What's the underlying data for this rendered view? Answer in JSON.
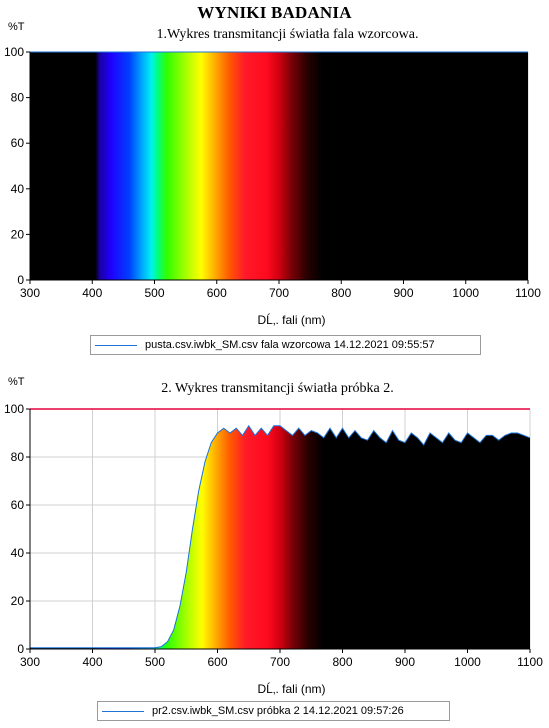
{
  "page_title": "WYNIKI BADANIA",
  "chart_data": [
    {
      "type": "area",
      "title": "1.Wykres transmitancji światła fala wzorcowa.",
      "ylabel": "%T",
      "xlabel": "DĹ‚. fali (nm)",
      "xlim": [
        300,
        1100
      ],
      "ylim": [
        0,
        100
      ],
      "xticks": [
        "300",
        "400",
        "500",
        "600",
        "700",
        "800",
        "900",
        "1000",
        "1100"
      ],
      "yticks": [
        "0",
        "20",
        "40",
        "60",
        "80",
        "100"
      ],
      "fill": "visible-spectrum",
      "grid": true,
      "legend": "pusta.csv.iwbk_SM.csv  fala wzorcowa  14.12.2021 09:55:57",
      "legend_color": "#1e73d8",
      "series": [
        {
          "x": [
            300,
            1100
          ],
          "y": [
            100,
            100
          ]
        }
      ]
    },
    {
      "type": "area",
      "title": "2. Wykres transmitancji światła próbka 2.",
      "ylabel": "%T",
      "xlabel": "DĹ‚. fali (nm)",
      "xlim": [
        300,
        1100
      ],
      "ylim": [
        0,
        100
      ],
      "xticks": [
        "300",
        "400",
        "500",
        "600",
        "700",
        "800",
        "900",
        "1000",
        "1100"
      ],
      "yticks": [
        "0",
        "20",
        "40",
        "60",
        "80",
        "100"
      ],
      "fill": "visible-spectrum",
      "grid": true,
      "reference_line": {
        "y": 100,
        "color": "#e8003c"
      },
      "legend": "pr2.csv.iwbk_SM.csv  próbka 2 14.12.2021 09:57:26",
      "legend_color": "#1e73d8",
      "series": [
        {
          "x": [
            300,
            500,
            510,
            520,
            530,
            540,
            550,
            560,
            570,
            580,
            590,
            600,
            610,
            620,
            630,
            640,
            650,
            660,
            670,
            680,
            690,
            700,
            710,
            720,
            730,
            740,
            750,
            760,
            770,
            780,
            790,
            800,
            810,
            820,
            830,
            840,
            850,
            860,
            870,
            880,
            890,
            900,
            910,
            920,
            930,
            940,
            950,
            960,
            970,
            980,
            990,
            1000,
            1010,
            1020,
            1030,
            1040,
            1050,
            1060,
            1070,
            1080,
            1090,
            1100
          ],
          "y": [
            0.5,
            0.5,
            1,
            3,
            8,
            18,
            32,
            50,
            66,
            78,
            86,
            90,
            92,
            90,
            92,
            89,
            93,
            89,
            92,
            89,
            93,
            93,
            91,
            89,
            92,
            89,
            91,
            90,
            88,
            92,
            88,
            92,
            88,
            91,
            88,
            87,
            91,
            88,
            86,
            91,
            87,
            86,
            90,
            88,
            85,
            90,
            88,
            86,
            90,
            87,
            86,
            90,
            88,
            86,
            89,
            89,
            87,
            89,
            90,
            90,
            89,
            88
          ]
        }
      ]
    }
  ]
}
